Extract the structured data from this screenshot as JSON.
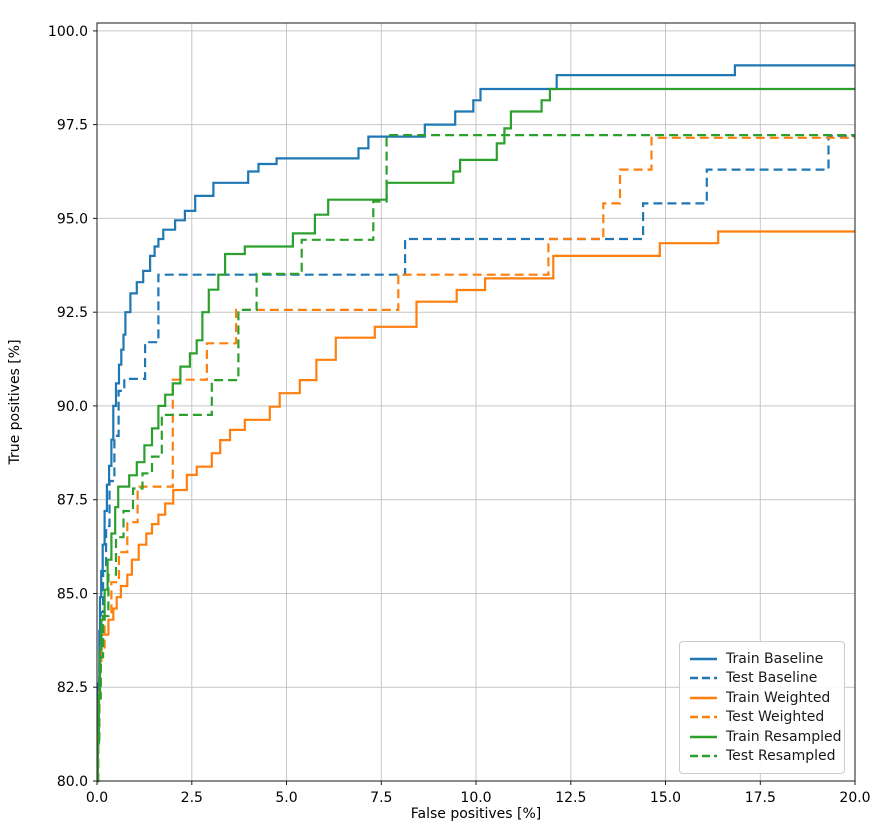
{
  "chart_data": {
    "type": "line",
    "subtype": "roc-step-curves",
    "title": "",
    "xlabel": "False positives [%]",
    "ylabel": "True positives [%]",
    "xlim": [
      0,
      20
    ],
    "ylim": [
      80,
      100.21
    ],
    "grid": true,
    "grid_color": "#c6c6c6",
    "spine_color": "#1a1a1a",
    "legend_position": "lower right",
    "step_mode": "post",
    "x_tick_values": [
      0,
      2.5,
      5,
      7.5,
      10,
      12.5,
      15,
      17.5,
      20
    ],
    "x_ticks": [
      "0.0",
      "2.5",
      "5.0",
      "7.5",
      "10.0",
      "12.5",
      "15.0",
      "17.5",
      "20.0"
    ],
    "y_tick_values": [
      80,
      82.5,
      85,
      87.5,
      90,
      92.5,
      95,
      97.5,
      100
    ],
    "y_ticks": [
      "80.0",
      "82.5",
      "85.0",
      "87.5",
      "90.0",
      "92.5",
      "95.0",
      "97.5",
      "100.0"
    ],
    "series": [
      {
        "name": "Train Baseline",
        "color": "#1f77b4",
        "style": "solid",
        "points": [
          [
            0,
            80
          ],
          [
            0.02,
            81.2
          ],
          [
            0.04,
            82.6
          ],
          [
            0.06,
            84.0
          ],
          [
            0.08,
            84.9
          ],
          [
            0.11,
            85.6
          ],
          [
            0.15,
            86.3
          ],
          [
            0.2,
            87.2
          ],
          [
            0.26,
            87.9
          ],
          [
            0.32,
            88.4
          ],
          [
            0.38,
            89.1
          ],
          [
            0.43,
            90.0
          ],
          [
            0.5,
            90.6
          ],
          [
            0.58,
            91.1
          ],
          [
            0.64,
            91.5
          ],
          [
            0.7,
            91.9
          ],
          [
            0.75,
            92.5
          ],
          [
            0.88,
            93.0
          ],
          [
            1.05,
            93.3
          ],
          [
            1.22,
            93.6
          ],
          [
            1.4,
            94.0
          ],
          [
            1.52,
            94.25
          ],
          [
            1.62,
            94.45
          ],
          [
            1.75,
            94.7
          ],
          [
            2.06,
            94.95
          ],
          [
            2.32,
            95.2
          ],
          [
            2.59,
            95.6
          ],
          [
            3.07,
            95.95
          ],
          [
            3.99,
            96.25
          ],
          [
            4.26,
            96.45
          ],
          [
            4.74,
            96.6
          ],
          [
            6.9,
            96.87
          ],
          [
            7.16,
            97.18
          ],
          [
            8.65,
            97.5
          ],
          [
            9.45,
            97.85
          ],
          [
            9.93,
            98.15
          ],
          [
            10.12,
            98.45
          ],
          [
            12.13,
            98.82
          ],
          [
            16.83,
            99.08
          ]
        ]
      },
      {
        "name": "Test Baseline",
        "color": "#1f77b4",
        "style": "dashed",
        "points": [
          [
            0,
            80
          ],
          [
            0.03,
            81.5
          ],
          [
            0.06,
            83.0
          ],
          [
            0.1,
            84.5
          ],
          [
            0.16,
            85.6
          ],
          [
            0.24,
            86.8
          ],
          [
            0.33,
            88.0
          ],
          [
            0.46,
            89.2
          ],
          [
            0.57,
            90.4
          ],
          [
            0.72,
            90.72
          ],
          [
            1.27,
            91.7
          ],
          [
            1.62,
            93.5
          ],
          [
            8.13,
            94.45
          ],
          [
            14.41,
            95.4
          ],
          [
            16.09,
            96.3
          ],
          [
            19.3,
            97.2
          ]
        ]
      },
      {
        "name": "Train Weighted",
        "color": "#ff7f0e",
        "style": "solid",
        "points": [
          [
            0,
            80
          ],
          [
            0.02,
            81.0
          ],
          [
            0.05,
            82.2
          ],
          [
            0.08,
            83.2
          ],
          [
            0.12,
            83.9
          ],
          [
            0.3,
            84.3
          ],
          [
            0.43,
            84.6
          ],
          [
            0.52,
            84.9
          ],
          [
            0.63,
            85.2
          ],
          [
            0.8,
            85.5
          ],
          [
            0.92,
            85.9
          ],
          [
            1.1,
            86.3
          ],
          [
            1.3,
            86.6
          ],
          [
            1.45,
            86.85
          ],
          [
            1.62,
            87.1
          ],
          [
            1.8,
            87.4
          ],
          [
            2.01,
            87.76
          ],
          [
            2.37,
            88.16
          ],
          [
            2.63,
            88.38
          ],
          [
            3.03,
            88.74
          ],
          [
            3.25,
            89.09
          ],
          [
            3.51,
            89.36
          ],
          [
            3.9,
            89.63
          ],
          [
            4.56,
            89.98
          ],
          [
            4.82,
            90.34
          ],
          [
            5.35,
            90.69
          ],
          [
            5.79,
            91.23
          ],
          [
            6.3,
            91.82
          ],
          [
            7.33,
            92.11
          ],
          [
            8.43,
            92.78
          ],
          [
            9.49,
            93.09
          ],
          [
            10.24,
            93.4
          ],
          [
            12.04,
            94.0
          ],
          [
            14.85,
            94.34
          ],
          [
            16.39,
            94.65
          ]
        ]
      },
      {
        "name": "Test Weighted",
        "color": "#ff7f0e",
        "style": "dashed",
        "points": [
          [
            0,
            80
          ],
          [
            0.03,
            81.2
          ],
          [
            0.06,
            82.5
          ],
          [
            0.1,
            83.5
          ],
          [
            0.2,
            84.5
          ],
          [
            0.38,
            85.3
          ],
          [
            0.58,
            86.1
          ],
          [
            0.8,
            86.9
          ],
          [
            1.07,
            87.85
          ],
          [
            2.0,
            90.7
          ],
          [
            2.9,
            91.67
          ],
          [
            3.67,
            92.56
          ],
          [
            7.95,
            93.5
          ],
          [
            11.91,
            94.45
          ],
          [
            13.36,
            95.4
          ],
          [
            13.8,
            96.3
          ],
          [
            14.63,
            97.15
          ]
        ]
      },
      {
        "name": "Train Resampled",
        "color": "#2ca02c",
        "style": "solid",
        "points": [
          [
            0,
            80
          ],
          [
            0.02,
            81.0
          ],
          [
            0.05,
            82.3
          ],
          [
            0.08,
            83.5
          ],
          [
            0.12,
            84.3
          ],
          [
            0.2,
            85.1
          ],
          [
            0.28,
            85.9
          ],
          [
            0.38,
            86.6
          ],
          [
            0.48,
            87.3
          ],
          [
            0.56,
            87.85
          ],
          [
            0.85,
            88.15
          ],
          [
            1.05,
            88.5
          ],
          [
            1.25,
            88.95
          ],
          [
            1.45,
            89.4
          ],
          [
            1.62,
            90.0
          ],
          [
            1.8,
            90.3
          ],
          [
            2.0,
            90.6
          ],
          [
            2.2,
            91.05
          ],
          [
            2.45,
            91.4
          ],
          [
            2.63,
            91.75
          ],
          [
            2.78,
            92.5
          ],
          [
            2.95,
            93.1
          ],
          [
            3.2,
            93.5
          ],
          [
            3.38,
            94.05
          ],
          [
            3.9,
            94.25
          ],
          [
            5.17,
            94.6
          ],
          [
            5.75,
            95.1
          ],
          [
            6.1,
            95.5
          ],
          [
            7.64,
            95.95
          ],
          [
            9.4,
            96.25
          ],
          [
            9.58,
            96.56
          ],
          [
            10.55,
            97.0
          ],
          [
            10.75,
            97.4
          ],
          [
            10.92,
            97.85
          ],
          [
            11.73,
            98.15
          ],
          [
            11.95,
            98.45
          ]
        ]
      },
      {
        "name": "Test Resampled",
        "color": "#2ca02c",
        "style": "dashed",
        "points": [
          [
            0,
            80
          ],
          [
            0.03,
            81.0
          ],
          [
            0.06,
            82.2
          ],
          [
            0.1,
            83.3
          ],
          [
            0.16,
            84.4
          ],
          [
            0.3,
            85.5
          ],
          [
            0.5,
            86.5
          ],
          [
            0.7,
            87.2
          ],
          [
            0.95,
            87.8
          ],
          [
            1.2,
            88.2
          ],
          [
            1.45,
            88.65
          ],
          [
            1.71,
            89.76
          ],
          [
            3.03,
            90.69
          ],
          [
            3.73,
            92.56
          ],
          [
            4.21,
            93.52
          ],
          [
            5.4,
            94.43
          ],
          [
            7.29,
            95.45
          ],
          [
            7.64,
            97.22
          ]
        ]
      }
    ]
  }
}
